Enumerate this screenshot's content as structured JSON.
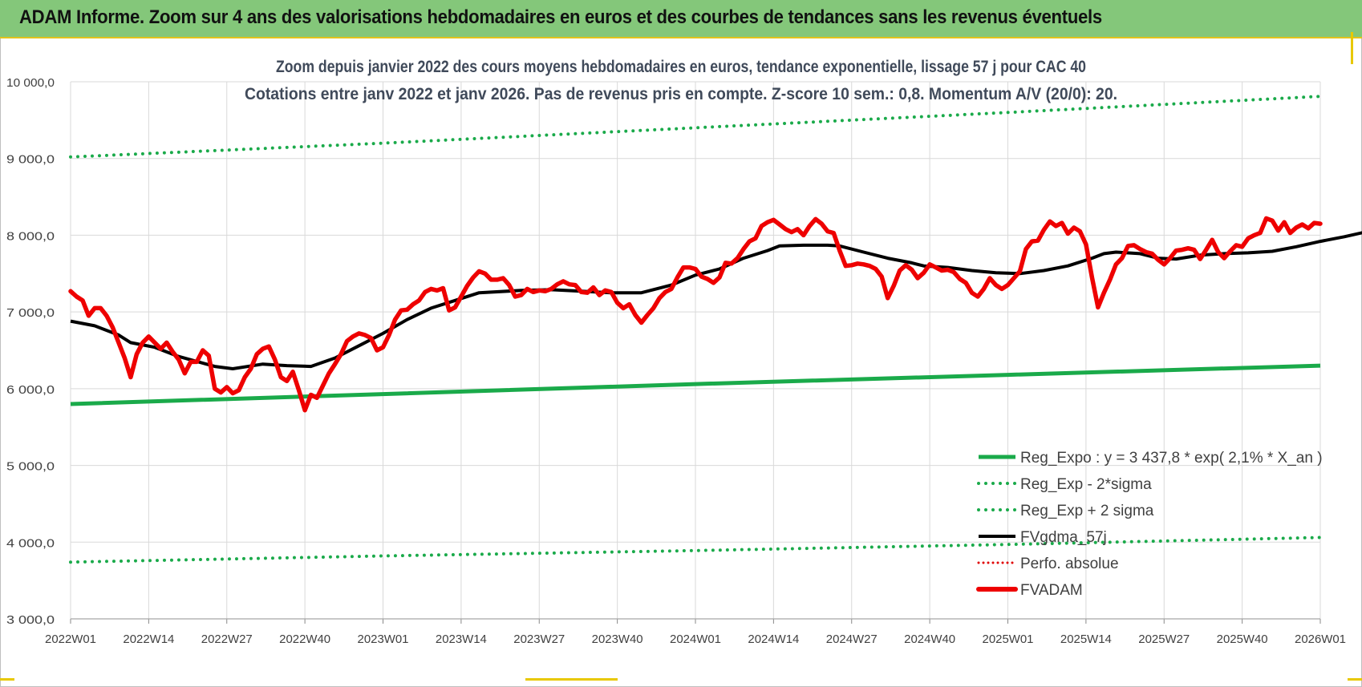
{
  "header": {
    "title": "ADAM Informe. Zoom sur 4 ans des valorisations hebdomadaires en euros et des courbes de tendances sans les revenus éventuels"
  },
  "colors": {
    "banner": "#84c77a",
    "reg_expo": "#1aaa4a",
    "sigma": "#1aaa4a",
    "fvgdma": "#000000",
    "perfo": "#e00000",
    "fvadam": "#ee0000",
    "grid": "#d9d9d9",
    "title_text": "#404a5a"
  },
  "chart_data": {
    "type": "line",
    "title_lines": [
      "Zoom depuis janvier 2022 des cours moyens hebdomadaires en euros, tendance exponentielle, lissage 57 j pour CAC 40",
      "Cotations entre janv 2022 et janv 2026. Pas de revenus pris en compte. Z-score 10 sem.: 0,8. Momentum A/V (20/0): 20."
    ],
    "ylim": [
      3000,
      10000
    ],
    "y_ticks": [
      {
        "value": 3000,
        "label": "3 000,0"
      },
      {
        "value": 4000,
        "label": "4 000,0"
      },
      {
        "value": 5000,
        "label": "5 000,0"
      },
      {
        "value": 6000,
        "label": "6 000,0"
      },
      {
        "value": 7000,
        "label": "7 000,0"
      },
      {
        "value": 8000,
        "label": "8 000,0"
      },
      {
        "value": 9000,
        "label": "9 000,0"
      },
      {
        "value": 10000,
        "label": "10 000,0"
      }
    ],
    "x_ticks": [
      "2022W01",
      "2022W14",
      "2022W27",
      "2022W40",
      "2023W01",
      "2023W14",
      "2023W27",
      "2023W40",
      "2024W01",
      "2024W14",
      "2024W27",
      "2024W40",
      "2025W01",
      "2025W14",
      "2025W27",
      "2025W40",
      "2026W01"
    ],
    "grid": true,
    "legend_position": "bottom-right",
    "series": [
      {
        "key": "reg_expo",
        "name": "Reg_Expo : y = 3 437,8 * exp( 2,1% *  X_an )",
        "style": "solid-thick",
        "points": [
          [
            0,
            5800
          ],
          [
            52,
            5930
          ],
          [
            104,
            6060
          ],
          [
            156,
            6180
          ],
          [
            208,
            6300
          ]
        ]
      },
      {
        "key": "reg_minus",
        "name": "Reg_Exp - 2*sigma",
        "style": "dotted",
        "points": [
          [
            0,
            3740
          ],
          [
            52,
            3820
          ],
          [
            104,
            3890
          ],
          [
            156,
            3970
          ],
          [
            208,
            4060
          ]
        ]
      },
      {
        "key": "reg_plus",
        "name": "Reg_Exp + 2 sigma",
        "style": "dotted",
        "points": [
          [
            0,
            9020
          ],
          [
            52,
            9200
          ],
          [
            104,
            9400
          ],
          [
            156,
            9600
          ],
          [
            208,
            9810
          ]
        ]
      },
      {
        "key": "fvgdma",
        "name": "FVgdma_57j",
        "style": "solid",
        "points": [
          [
            0,
            6880
          ],
          [
            4,
            6820
          ],
          [
            8,
            6700
          ],
          [
            10,
            6600
          ],
          [
            14,
            6540
          ],
          [
            18,
            6420
          ],
          [
            24,
            6290
          ],
          [
            27,
            6260
          ],
          [
            32,
            6320
          ],
          [
            36,
            6300
          ],
          [
            40,
            6290
          ],
          [
            44,
            6400
          ],
          [
            48,
            6560
          ],
          [
            52,
            6720
          ],
          [
            56,
            6900
          ],
          [
            60,
            7050
          ],
          [
            64,
            7150
          ],
          [
            68,
            7250
          ],
          [
            75,
            7280
          ],
          [
            80,
            7290
          ],
          [
            85,
            7270
          ],
          [
            90,
            7250
          ],
          [
            95,
            7250
          ],
          [
            100,
            7350
          ],
          [
            104,
            7480
          ],
          [
            108,
            7560
          ],
          [
            112,
            7700
          ],
          [
            116,
            7800
          ],
          [
            118,
            7860
          ],
          [
            122,
            7870
          ],
          [
            126,
            7870
          ],
          [
            128,
            7860
          ],
          [
            132,
            7780
          ],
          [
            136,
            7700
          ],
          [
            140,
            7640
          ],
          [
            142,
            7600
          ],
          [
            146,
            7580
          ],
          [
            150,
            7540
          ],
          [
            154,
            7510
          ],
          [
            158,
            7500
          ],
          [
            162,
            7540
          ],
          [
            166,
            7600
          ],
          [
            170,
            7700
          ],
          [
            172,
            7760
          ],
          [
            174,
            7780
          ],
          [
            178,
            7760
          ],
          [
            181,
            7700
          ],
          [
            184,
            7690
          ],
          [
            188,
            7740
          ],
          [
            192,
            7760
          ],
          [
            196,
            7770
          ],
          [
            200,
            7790
          ],
          [
            204,
            7850
          ],
          [
            208,
            7920
          ],
          [
            212,
            7980
          ],
          [
            216,
            8050
          ],
          [
            220,
            8100
          ]
        ]
      },
      {
        "key": "perfo",
        "name": "Perfo. absolue",
        "style": "dotted-red",
        "points": []
      },
      {
        "key": "fvadam",
        "name": "FVADAM",
        "style": "solid-thick",
        "points": [
          [
            0,
            7270
          ],
          [
            1,
            7200
          ],
          [
            2,
            7150
          ],
          [
            3,
            6950
          ],
          [
            4,
            7050
          ],
          [
            5,
            7050
          ],
          [
            6,
            6950
          ],
          [
            7,
            6800
          ],
          [
            8,
            6600
          ],
          [
            9,
            6400
          ],
          [
            10,
            6150
          ],
          [
            11,
            6450
          ],
          [
            12,
            6600
          ],
          [
            13,
            6680
          ],
          [
            14,
            6600
          ],
          [
            15,
            6520
          ],
          [
            16,
            6600
          ],
          [
            17,
            6480
          ],
          [
            18,
            6380
          ],
          [
            19,
            6200
          ],
          [
            20,
            6350
          ],
          [
            21,
            6350
          ],
          [
            22,
            6500
          ],
          [
            23,
            6430
          ],
          [
            24,
            6000
          ],
          [
            25,
            5950
          ],
          [
            26,
            6020
          ],
          [
            27,
            5940
          ],
          [
            28,
            5980
          ],
          [
            29,
            6150
          ],
          [
            30,
            6260
          ],
          [
            31,
            6450
          ],
          [
            32,
            6520
          ],
          [
            33,
            6550
          ],
          [
            34,
            6380
          ],
          [
            35,
            6150
          ],
          [
            36,
            6100
          ],
          [
            37,
            6220
          ],
          [
            38,
            5980
          ],
          [
            39,
            5720
          ],
          [
            40,
            5920
          ],
          [
            41,
            5880
          ],
          [
            42,
            6040
          ],
          [
            43,
            6200
          ],
          [
            44,
            6320
          ],
          [
            45,
            6450
          ],
          [
            46,
            6620
          ],
          [
            47,
            6680
          ],
          [
            48,
            6720
          ],
          [
            49,
            6700
          ],
          [
            50,
            6660
          ],
          [
            51,
            6500
          ],
          [
            52,
            6540
          ],
          [
            53,
            6700
          ],
          [
            54,
            6900
          ],
          [
            55,
            7020
          ],
          [
            56,
            7030
          ],
          [
            57,
            7100
          ],
          [
            58,
            7150
          ],
          [
            59,
            7260
          ],
          [
            60,
            7300
          ],
          [
            61,
            7280
          ],
          [
            62,
            7310
          ],
          [
            63,
            7020
          ],
          [
            64,
            7060
          ],
          [
            65,
            7200
          ],
          [
            66,
            7340
          ],
          [
            67,
            7450
          ],
          [
            68,
            7530
          ],
          [
            69,
            7500
          ],
          [
            70,
            7420
          ],
          [
            71,
            7420
          ],
          [
            72,
            7440
          ],
          [
            73,
            7350
          ],
          [
            74,
            7200
          ],
          [
            75,
            7220
          ],
          [
            76,
            7300
          ],
          [
            77,
            7260
          ],
          [
            78,
            7280
          ],
          [
            79,
            7270
          ],
          [
            80,
            7300
          ],
          [
            81,
            7360
          ],
          [
            82,
            7400
          ],
          [
            83,
            7360
          ],
          [
            84,
            7350
          ],
          [
            85,
            7260
          ],
          [
            86,
            7250
          ],
          [
            87,
            7320
          ],
          [
            88,
            7220
          ],
          [
            89,
            7280
          ],
          [
            90,
            7260
          ],
          [
            91,
            7120
          ],
          [
            92,
            7050
          ],
          [
            93,
            7100
          ],
          [
            94,
            6960
          ],
          [
            95,
            6860
          ],
          [
            96,
            6960
          ],
          [
            97,
            7050
          ],
          [
            98,
            7180
          ],
          [
            99,
            7260
          ],
          [
            100,
            7300
          ],
          [
            101,
            7450
          ],
          [
            102,
            7580
          ],
          [
            103,
            7580
          ],
          [
            104,
            7560
          ],
          [
            105,
            7460
          ],
          [
            106,
            7430
          ],
          [
            107,
            7380
          ],
          [
            108,
            7450
          ],
          [
            109,
            7640
          ],
          [
            110,
            7630
          ],
          [
            111,
            7700
          ],
          [
            112,
            7820
          ],
          [
            113,
            7920
          ],
          [
            114,
            7960
          ],
          [
            115,
            8120
          ],
          [
            116,
            8170
          ],
          [
            117,
            8200
          ],
          [
            118,
            8140
          ],
          [
            119,
            8080
          ],
          [
            120,
            8040
          ],
          [
            121,
            8080
          ],
          [
            122,
            8000
          ],
          [
            123,
            8120
          ],
          [
            124,
            8210
          ],
          [
            125,
            8150
          ],
          [
            126,
            8050
          ],
          [
            127,
            8030
          ],
          [
            128,
            7800
          ],
          [
            129,
            7600
          ],
          [
            130,
            7610
          ],
          [
            131,
            7630
          ],
          [
            132,
            7620
          ],
          [
            133,
            7600
          ],
          [
            134,
            7560
          ],
          [
            135,
            7460
          ],
          [
            136,
            7180
          ],
          [
            137,
            7340
          ],
          [
            138,
            7540
          ],
          [
            139,
            7610
          ],
          [
            140,
            7550
          ],
          [
            141,
            7440
          ],
          [
            142,
            7510
          ],
          [
            143,
            7620
          ],
          [
            144,
            7580
          ],
          [
            145,
            7540
          ],
          [
            146,
            7550
          ],
          [
            147,
            7520
          ],
          [
            148,
            7430
          ],
          [
            149,
            7380
          ],
          [
            150,
            7250
          ],
          [
            151,
            7200
          ],
          [
            152,
            7300
          ],
          [
            153,
            7440
          ],
          [
            154,
            7350
          ],
          [
            155,
            7300
          ],
          [
            156,
            7350
          ],
          [
            157,
            7440
          ],
          [
            158,
            7530
          ],
          [
            159,
            7820
          ],
          [
            160,
            7920
          ],
          [
            161,
            7930
          ],
          [
            162,
            8070
          ],
          [
            163,
            8180
          ],
          [
            164,
            8120
          ],
          [
            165,
            8160
          ],
          [
            166,
            8020
          ],
          [
            167,
            8100
          ],
          [
            168,
            8050
          ],
          [
            169,
            7880
          ],
          [
            170,
            7450
          ],
          [
            171,
            7060
          ],
          [
            172,
            7250
          ],
          [
            173,
            7420
          ],
          [
            174,
            7620
          ],
          [
            175,
            7700
          ],
          [
            176,
            7860
          ],
          [
            177,
            7870
          ],
          [
            178,
            7820
          ],
          [
            179,
            7780
          ],
          [
            180,
            7760
          ],
          [
            181,
            7680
          ],
          [
            182,
            7620
          ],
          [
            183,
            7700
          ],
          [
            184,
            7800
          ],
          [
            185,
            7810
          ],
          [
            186,
            7830
          ],
          [
            187,
            7810
          ],
          [
            188,
            7690
          ],
          [
            189,
            7810
          ],
          [
            190,
            7940
          ],
          [
            191,
            7780
          ],
          [
            192,
            7700
          ],
          [
            193,
            7790
          ],
          [
            194,
            7870
          ],
          [
            195,
            7850
          ],
          [
            196,
            7960
          ],
          [
            197,
            8000
          ],
          [
            198,
            8030
          ],
          [
            199,
            8220
          ],
          [
            200,
            8190
          ],
          [
            201,
            8060
          ],
          [
            202,
            8170
          ],
          [
            203,
            8030
          ],
          [
            204,
            8100
          ],
          [
            205,
            8140
          ],
          [
            206,
            8090
          ],
          [
            207,
            8160
          ],
          [
            208,
            8150
          ]
        ]
      }
    ]
  }
}
